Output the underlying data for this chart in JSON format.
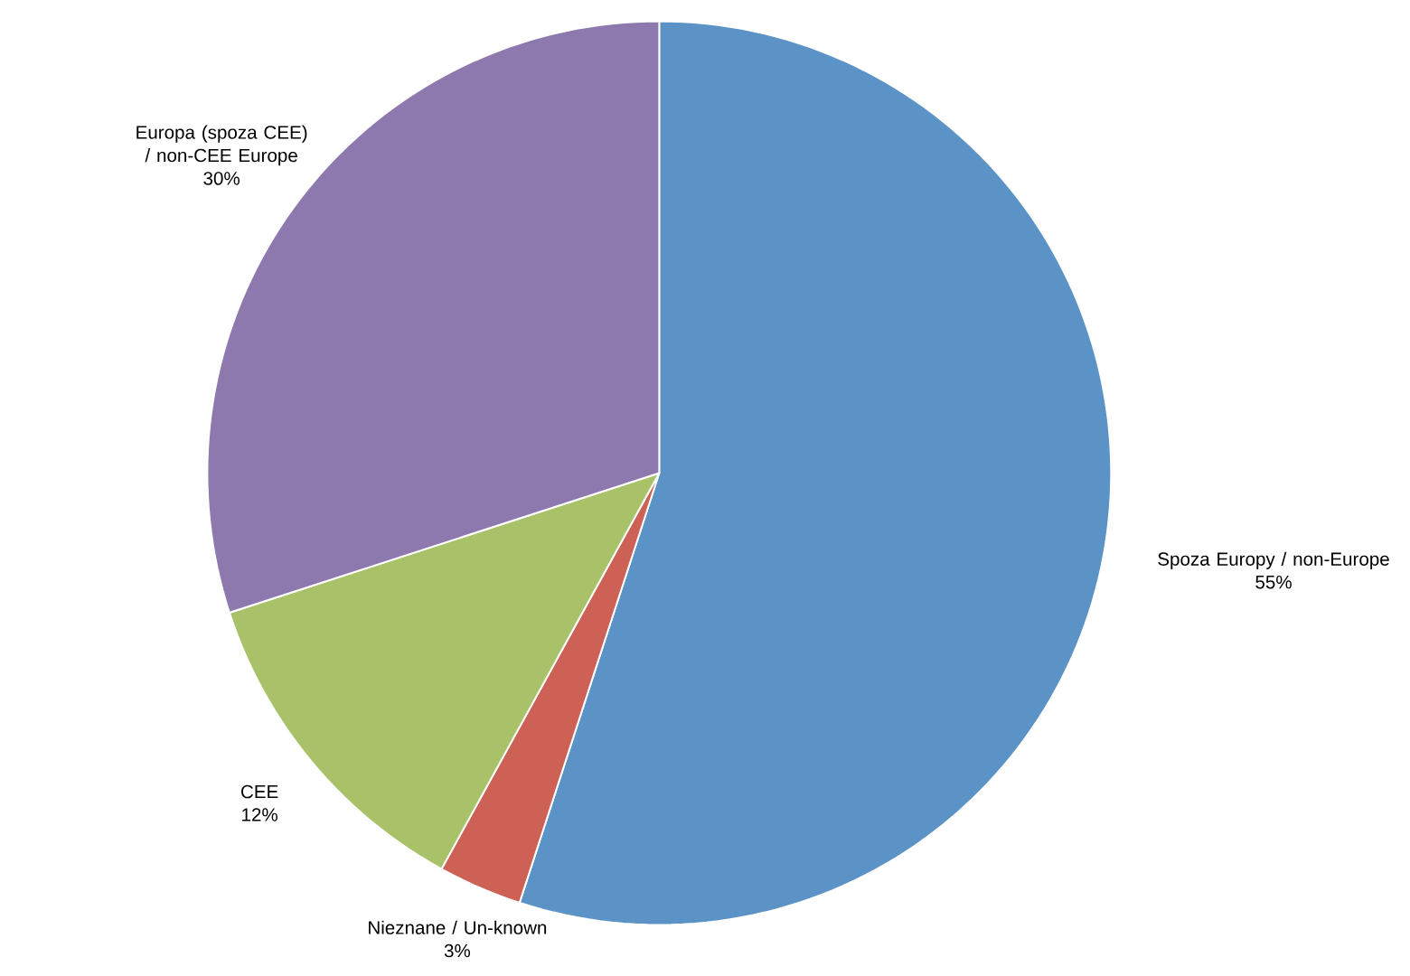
{
  "chart_data": {
    "type": "pie",
    "categories": [
      "Spoza Europy / non-Europe",
      "Nieznane / Un-known",
      "CEE",
      "Europa (spoza CEE) / non-CEE Europe"
    ],
    "values": [
      55,
      3,
      12,
      30
    ],
    "colors": [
      "#5b93c7",
      "#cd6155",
      "#a9c26a",
      "#8e79ae"
    ],
    "value_labels": [
      "55%",
      "3%",
      "12%",
      "30%"
    ]
  }
}
